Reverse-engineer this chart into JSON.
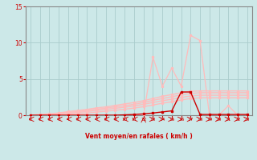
{
  "xlabel": "Vent moyen/en rafales ( km/h )",
  "ylim": [
    0,
    15
  ],
  "xlim": [
    -0.5,
    23.5
  ],
  "yticks": [
    0,
    5,
    10,
    15
  ],
  "xticks": [
    0,
    1,
    2,
    3,
    4,
    5,
    6,
    7,
    8,
    9,
    10,
    11,
    12,
    13,
    14,
    15,
    16,
    17,
    18,
    19,
    20,
    21,
    22,
    23
  ],
  "bg_color": "#cce8e8",
  "grid_color": "#aacccc",
  "line_color_dark": "#cc0000",
  "line_color_mid": "#ee7777",
  "line_color_light": "#ffbbbb",
  "x_values": [
    0,
    1,
    2,
    3,
    4,
    5,
    6,
    7,
    8,
    9,
    10,
    11,
    12,
    13,
    14,
    15,
    16,
    17,
    18,
    19,
    20,
    21,
    22,
    23
  ],
  "line_slope1_y": [
    0,
    0.1,
    0.2,
    0.3,
    0.5,
    0.65,
    0.8,
    1.0,
    1.15,
    1.35,
    1.55,
    1.75,
    2.0,
    2.3,
    2.6,
    2.85,
    3.1,
    3.3,
    3.35,
    3.35,
    3.35,
    3.35,
    3.35,
    3.35
  ],
  "line_slope2_y": [
    0,
    0.05,
    0.12,
    0.22,
    0.38,
    0.5,
    0.65,
    0.82,
    0.98,
    1.15,
    1.32,
    1.5,
    1.75,
    2.05,
    2.3,
    2.55,
    2.8,
    3.0,
    3.1,
    3.1,
    3.1,
    3.1,
    3.1,
    3.1
  ],
  "line_slope3_y": [
    0,
    0.03,
    0.08,
    0.15,
    0.25,
    0.38,
    0.5,
    0.65,
    0.8,
    0.95,
    1.1,
    1.28,
    1.5,
    1.75,
    2.0,
    2.2,
    2.45,
    2.65,
    2.75,
    2.75,
    2.75,
    2.75,
    2.75,
    2.75
  ],
  "line_slope4_y": [
    0,
    0.01,
    0.03,
    0.07,
    0.12,
    0.2,
    0.3,
    0.42,
    0.55,
    0.68,
    0.82,
    0.98,
    1.18,
    1.4,
    1.65,
    1.85,
    2.1,
    2.3,
    2.4,
    2.4,
    2.4,
    2.4,
    2.4,
    2.4
  ],
  "line_dark_y": [
    0,
    0,
    0,
    0,
    0,
    0,
    0,
    0,
    0,
    0,
    0.05,
    0.1,
    0.18,
    0.3,
    0.45,
    0.6,
    3.2,
    3.2,
    0.1,
    0.1,
    0.1,
    0.1,
    0.1,
    0.1
  ],
  "line_peak_y": [
    0,
    0,
    0,
    0,
    0,
    0,
    0,
    0,
    0,
    0,
    0,
    0,
    0,
    8.0,
    4.0,
    6.5,
    4.0,
    11.0,
    10.3,
    0,
    0,
    1.3,
    0,
    0
  ],
  "arrow_dirs": [
    -1,
    -1,
    -1,
    -1,
    -1,
    -1,
    -1,
    -1,
    -1,
    -1,
    -1,
    -1,
    0,
    1,
    1,
    1,
    1,
    1,
    1,
    1,
    1,
    1,
    1,
    1
  ],
  "xlabel_color": "#cc0000",
  "tick_color": "#cc0000",
  "axis_color": "#888888"
}
